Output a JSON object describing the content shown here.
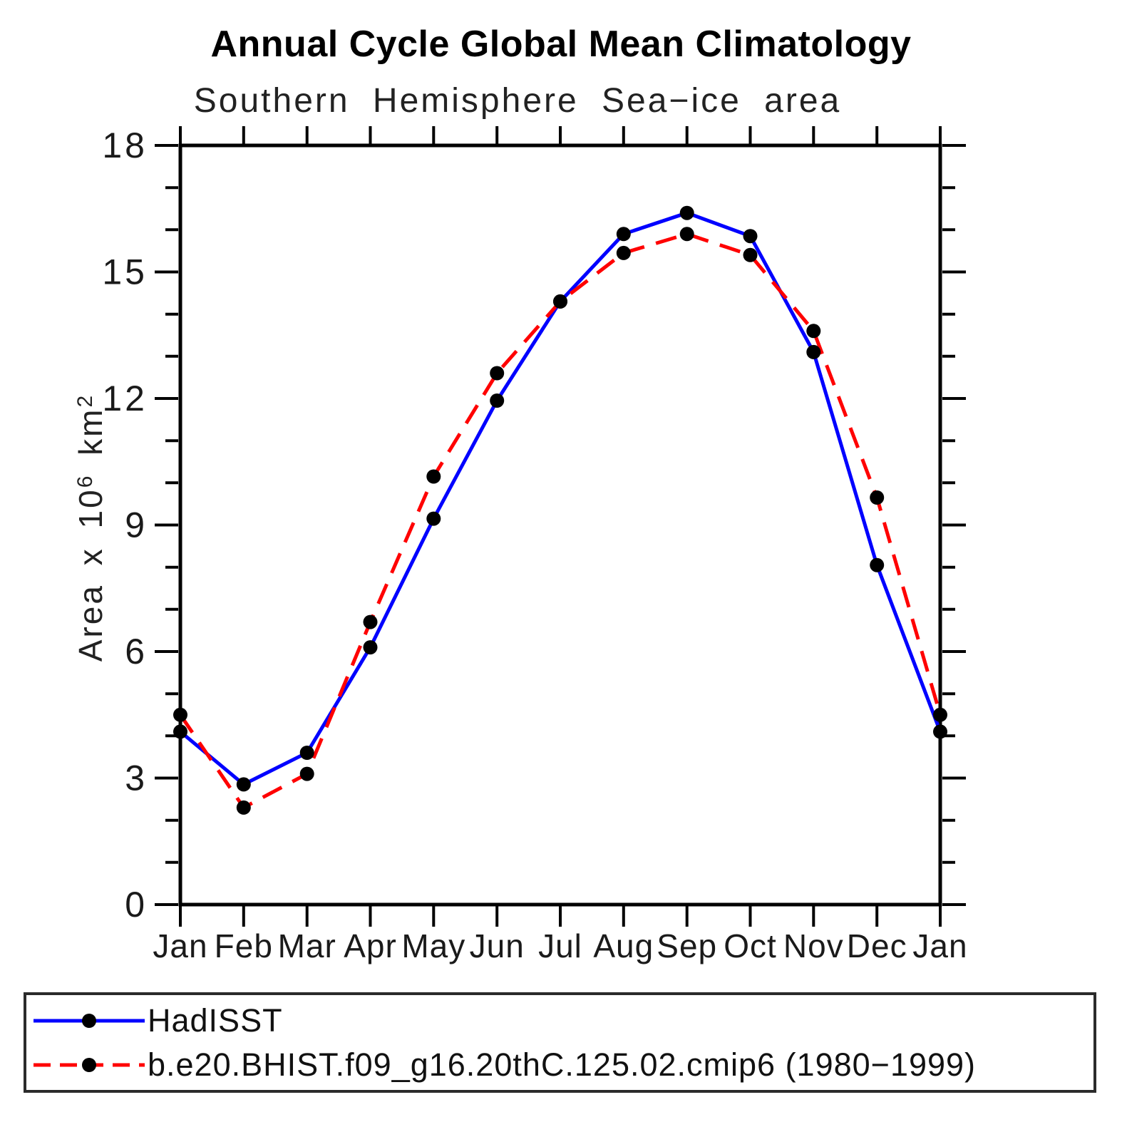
{
  "title": "Annual Cycle Global Mean Climatology",
  "subtitle": "Southern Hemisphere Sea−ice area",
  "ylabel": {
    "prefix": "Area x 10",
    "sup1": "6",
    "mid": " km",
    "sup2": "2"
  },
  "legend": {
    "position": "bottom",
    "items": [
      {
        "label": "HadISST",
        "color": "#0000ff",
        "style": "solid",
        "marker_color": "#000000"
      },
      {
        "label": "b.e20.BHIST.f09_g16.20thC.125.02.cmip6 (1980−1999)",
        "color": "#ff0000",
        "style": "dashed",
        "marker_color": "#000000"
      }
    ]
  },
  "chart_data": {
    "type": "line",
    "title": "Annual Cycle Global Mean Climatology",
    "subtitle": "Southern Hemisphere Sea−ice area",
    "xlabel": "",
    "ylabel": "Area x 10^6 km^2",
    "x_tick_labels": [
      "Jan",
      "Feb",
      "Mar",
      "Apr",
      "May",
      "Jun",
      "Jul",
      "Aug",
      "Sep",
      "Oct",
      "Nov",
      "Dec",
      "Jan"
    ],
    "ylim": [
      0,
      18
    ],
    "y_major_ticks": [
      0,
      3,
      6,
      9,
      12,
      15,
      18
    ],
    "y_minor_step": 1,
    "grid": false,
    "frame": "box-with-outward-ticks",
    "legend_position": "bottom",
    "series": [
      {
        "name": "HadISST",
        "color": "#0000ff",
        "line_style": "solid",
        "marker": "circle",
        "marker_color": "#000000",
        "values": [
          4.1,
          2.85,
          3.6,
          6.1,
          9.15,
          11.95,
          14.3,
          15.9,
          16.4,
          15.85,
          13.1,
          8.05,
          4.1
        ]
      },
      {
        "name": "b.e20.BHIST.f09_g16.20thC.125.02.cmip6 (1980−1999)",
        "color": "#ff0000",
        "line_style": "dashed",
        "marker": "circle",
        "marker_color": "#000000",
        "values": [
          4.5,
          2.3,
          3.1,
          6.7,
          10.15,
          12.6,
          14.3,
          15.45,
          15.9,
          15.4,
          13.6,
          9.65,
          4.5
        ]
      }
    ]
  }
}
